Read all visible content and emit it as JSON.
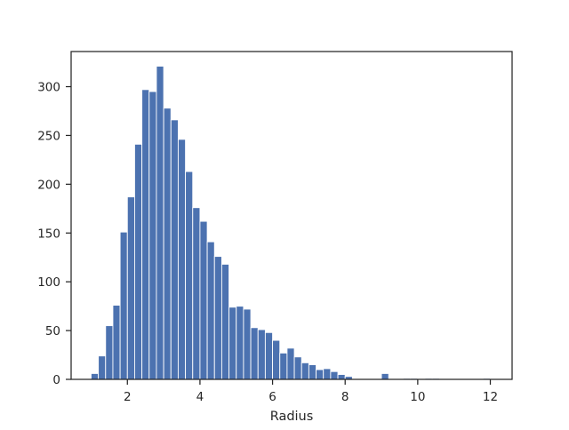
{
  "chart_data": {
    "type": "bar",
    "subtype": "histogram",
    "title": "",
    "xlabel": "Radius",
    "ylabel": "",
    "xlim": [
      0.45,
      12.6
    ],
    "ylim": [
      0,
      336
    ],
    "grid": false,
    "bar_color": "#4c72b0",
    "bar_edge_color": "#ffffff",
    "xticks": [
      2,
      4,
      6,
      8,
      10,
      12
    ],
    "yticks": [
      0,
      50,
      100,
      150,
      200,
      250,
      300
    ],
    "bin_width": 0.2,
    "bin_starts": [
      1.0,
      1.2,
      1.4,
      1.6,
      1.8,
      2.0,
      2.2,
      2.4,
      2.6,
      2.8,
      3.0,
      3.2,
      3.4,
      3.6,
      3.8,
      4.0,
      4.2,
      4.4,
      4.6,
      4.8,
      5.0,
      5.2,
      5.4,
      5.6,
      5.8,
      6.0,
      6.2,
      6.4,
      6.6,
      6.8,
      7.0,
      7.2,
      7.4,
      7.6,
      7.8,
      8.0,
      8.2,
      8.4,
      8.6,
      8.8,
      9.0,
      9.2,
      9.4,
      9.6,
      9.8,
      10.0,
      10.2,
      10.4,
      10.6,
      10.8,
      11.0,
      11.2,
      11.4,
      11.6,
      11.8
    ],
    "counts": [
      6,
      24,
      55,
      76,
      151,
      187,
      241,
      297,
      295,
      321,
      278,
      266,
      246,
      213,
      176,
      162,
      141,
      126,
      118,
      74,
      75,
      72,
      53,
      51,
      48,
      40,
      27,
      32,
      23,
      17,
      15,
      10,
      11,
      8,
      5,
      3,
      0,
      0,
      0,
      0,
      6,
      0,
      0,
      1,
      1,
      0,
      1,
      1,
      0,
      0,
      0,
      0,
      0,
      0,
      1
    ]
  }
}
